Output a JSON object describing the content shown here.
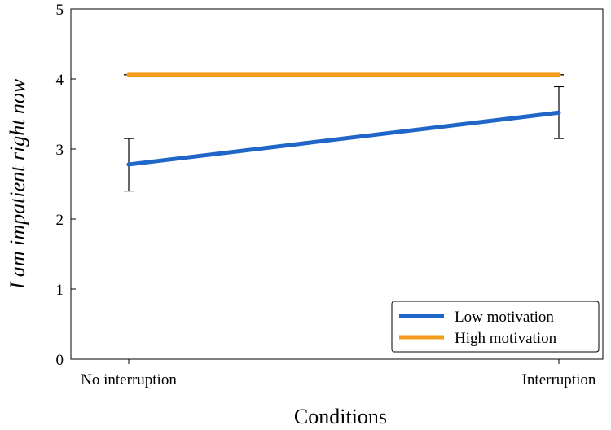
{
  "chart_data": {
    "type": "line",
    "title": "",
    "xlabel": "Conditions",
    "ylabel": "I am impatient right now",
    "categories": [
      "No interruption",
      "Interruption"
    ],
    "ylim": [
      0,
      5
    ],
    "yticks": [
      "0",
      "1",
      "2",
      "3",
      "4",
      "5"
    ],
    "grid": false,
    "legend_position": "bottom-right",
    "series": [
      {
        "name": "Low motivation",
        "color": "#1f66c8",
        "values": [
          2.78,
          3.52
        ],
        "error_low": [
          2.4,
          3.15
        ],
        "error_high": [
          3.15,
          3.89
        ]
      },
      {
        "name": "High motivation",
        "color": "#f39b1a",
        "values": [
          4.06,
          4.06
        ],
        "error_low": [
          4.06,
          4.06
        ],
        "error_high": [
          4.06,
          4.06
        ]
      }
    ]
  }
}
